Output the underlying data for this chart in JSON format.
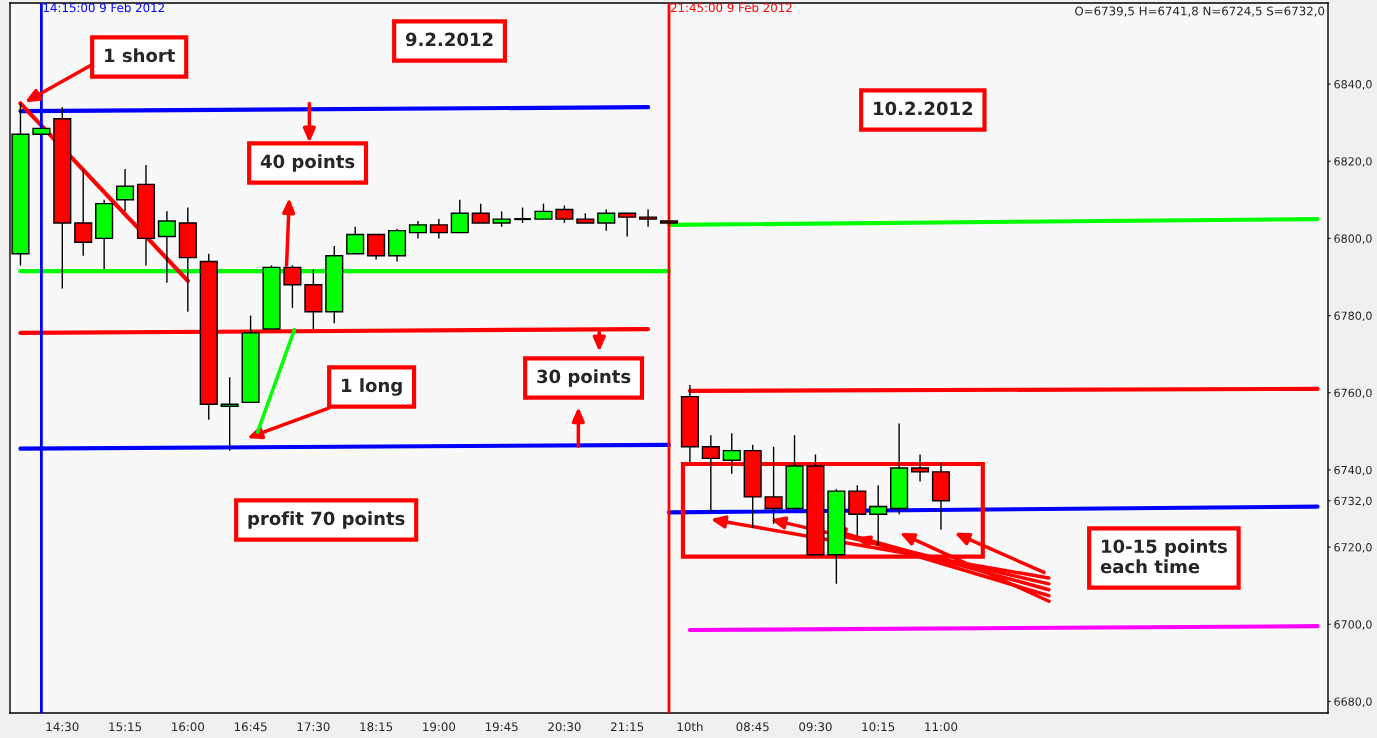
{
  "chart_data": {
    "type": "candlestick",
    "categories": [
      null,
      null,
      "14:30",
      null,
      null,
      "15:15",
      null,
      null,
      "16:00",
      null,
      null,
      "16:45",
      null,
      null,
      "17:30",
      null,
      null,
      "18:15",
      null,
      null,
      "19:00",
      null,
      null,
      "19:45",
      null,
      null,
      "20:30",
      null,
      null,
      "21:15",
      null,
      null,
      "10th",
      null,
      null,
      "08:45",
      null,
      null,
      "09:30",
      null,
      null,
      "10:15",
      null,
      null,
      "11:00",
      null,
      null,
      null,
      null,
      null,
      null,
      null,
      null,
      null,
      null,
      null,
      null,
      null,
      null,
      null,
      null,
      null,
      null
    ],
    "ohlc": [
      [
        6796,
        6835,
        6793,
        6827
      ],
      [
        6827,
        6828.5,
        6827,
        6828.5
      ],
      [
        6831,
        6834,
        6787,
        6804
      ],
      [
        6804,
        6818,
        6795.5,
        6799
      ],
      [
        6800,
        6810,
        6792,
        6809
      ],
      [
        6810,
        6818,
        6807,
        6813.5
      ],
      [
        6814,
        6819,
        6793,
        6800
      ],
      [
        6800.5,
        6807,
        6788.5,
        6804.5
      ],
      [
        6804,
        6808,
        6781,
        6795
      ],
      [
        6794,
        6796,
        6753,
        6757
      ],
      [
        6756.5,
        6764,
        6745,
        6757
      ],
      [
        6757.5,
        6780,
        6757.5,
        6775.5
      ],
      [
        6776.5,
        6793,
        6776.5,
        6792.5
      ],
      [
        6792.5,
        6793,
        6782,
        6788
      ],
      [
        6788,
        6792,
        6776.5,
        6781
      ],
      [
        6781,
        6798,
        6778,
        6795.5
      ],
      [
        6796,
        6803,
        6796,
        6801
      ],
      [
        6801,
        6801,
        6794.5,
        6795.5
      ],
      [
        6795.5,
        6802.5,
        6794,
        6802
      ],
      [
        6801.5,
        6804.5,
        6800,
        6803.5
      ],
      [
        6803.5,
        6805,
        6800,
        6801.5
      ],
      [
        6801.5,
        6810,
        6801.5,
        6806.5
      ],
      [
        6806.5,
        6809,
        6804,
        6804
      ],
      [
        6804,
        6807,
        6803,
        6805
      ],
      [
        6805,
        6808,
        6804,
        6805
      ],
      [
        6805,
        6809,
        6805,
        6807
      ],
      [
        6807.5,
        6808.5,
        6804,
        6805
      ],
      [
        6805,
        6806.5,
        6804,
        6804
      ],
      [
        6804,
        6807.5,
        6802,
        6806.5
      ],
      [
        6806.5,
        6806.5,
        6800.5,
        6805.5
      ],
      [
        6805.5,
        6807.5,
        6803,
        6805
      ],
      [
        6804.5,
        6804.5,
        6804,
        6804
      ],
      [
        6759,
        6762,
        6742,
        6746
      ],
      [
        6746,
        6749,
        6729,
        6743
      ],
      [
        6742.5,
        6749.5,
        6739,
        6745
      ],
      [
        6745,
        6746.5,
        6725,
        6733
      ],
      [
        6733,
        6746,
        6726,
        6730
      ],
      [
        6730,
        6749,
        6730,
        6741
      ],
      [
        6741,
        6744,
        6718,
        6718
      ],
      [
        6718,
        6735,
        6710.5,
        6734.5
      ],
      [
        6734.5,
        6736,
        6723,
        6728.5
      ],
      [
        6728.5,
        6736,
        6720.5,
        6730.5
      ],
      [
        6730,
        6752,
        6728.5,
        6740.5
      ],
      [
        6740.5,
        6744,
        6737,
        6739.5
      ],
      [
        6739.5,
        6741.8,
        6724.5,
        6732
      ],
      null,
      null,
      null,
      null,
      null,
      null,
      null,
      null,
      null,
      null,
      null,
      null,
      null,
      null,
      null,
      null,
      null,
      null
    ],
    "colors": [
      "#00ff00",
      "#00ff00",
      "#ff0000",
      "#ff0000",
      "#00ff00",
      "#00ff00",
      "#ff0000",
      "#00ff00",
      "#ff0000",
      "#ff0000",
      "#00ff00",
      "#00ff00",
      "#00ff00",
      "#ff0000",
      "#ff0000",
      "#00ff00",
      "#00ff00",
      "#ff0000",
      "#00ff00",
      "#00ff00",
      "#ff0000",
      "#00ff00",
      "#ff0000",
      "#00ff00",
      "#000000",
      "#00ff00",
      "#ff0000",
      "#ff0000",
      "#00ff00",
      "#ff0000",
      "#ff0000",
      "#ff0000",
      "#ff0000",
      "#ff0000",
      "#00ff00",
      "#ff0000",
      "#ff0000",
      "#00ff00",
      "#ff0000",
      "#00ff00",
      "#ff0000",
      "#00ff00",
      "#00ff00",
      "#ff0000",
      "#ff0000",
      null,
      null,
      null,
      null,
      null,
      null,
      null,
      null,
      null,
      null,
      null,
      null,
      null,
      null,
      null,
      null,
      null,
      null
    ],
    "series": [
      {
        "type": "line",
        "color": "#0000ff",
        "values": [
          6833,
          null,
          null,
          null,
          null,
          null,
          null,
          null,
          null,
          null,
          null,
          null,
          null,
          null,
          null,
          null,
          null,
          null,
          null,
          null,
          null,
          null,
          null,
          null,
          null,
          null,
          null,
          null,
          null,
          null,
          6834,
          null,
          null,
          null,
          null,
          null,
          null,
          null,
          null,
          null,
          null,
          null,
          null,
          null,
          null,
          null,
          null,
          null,
          null,
          null,
          null,
          null,
          null,
          null,
          null,
          null,
          null,
          null,
          null,
          null,
          null,
          null,
          null
        ]
      },
      {
        "type": "line",
        "color": "#00ff00",
        "values": [
          6791.5,
          null,
          null,
          null,
          null,
          null,
          null,
          null,
          null,
          null,
          null,
          null,
          null,
          null,
          null,
          null,
          null,
          null,
          null,
          null,
          null,
          null,
          null,
          null,
          null,
          null,
          null,
          null,
          null,
          null,
          null,
          6791.5,
          null,
          null,
          null,
          null,
          null,
          null,
          null,
          null,
          null,
          null,
          null,
          null,
          null,
          null,
          null,
          null,
          null,
          null,
          null,
          null,
          null,
          null,
          null,
          null,
          null,
          null,
          null,
          null,
          null,
          null,
          null
        ]
      },
      {
        "type": "line",
        "color": "#ff0000",
        "values": [
          6775.5,
          null,
          null,
          null,
          null,
          null,
          null,
          null,
          null,
          null,
          null,
          null,
          null,
          null,
          null,
          null,
          null,
          null,
          null,
          null,
          null,
          null,
          null,
          null,
          null,
          null,
          null,
          null,
          null,
          null,
          6776.5,
          null,
          null,
          null,
          null,
          null,
          null,
          null,
          null,
          null,
          null,
          null,
          null,
          null,
          null,
          null,
          null,
          null,
          null,
          null,
          null,
          null,
          null,
          null,
          null,
          null,
          null,
          null,
          null,
          null,
          null,
          null,
          null
        ]
      },
      {
        "type": "line",
        "color": "#0000ff",
        "values": [
          6745.5,
          null,
          null,
          null,
          null,
          null,
          null,
          null,
          null,
          null,
          null,
          null,
          null,
          null,
          null,
          null,
          null,
          null,
          null,
          null,
          null,
          null,
          null,
          null,
          null,
          null,
          null,
          null,
          null,
          null,
          null,
          6746.5,
          null,
          null,
          null,
          null,
          null,
          null,
          null,
          null,
          null,
          null,
          null,
          null,
          null,
          null,
          null,
          null,
          null,
          null,
          null,
          null,
          null,
          null,
          null,
          null,
          null,
          null,
          null,
          null,
          null,
          null,
          null
        ]
      },
      {
        "type": "line",
        "color": "#00ff00",
        "values": [
          null,
          null,
          null,
          null,
          null,
          null,
          null,
          null,
          null,
          null,
          null,
          null,
          null,
          null,
          null,
          null,
          null,
          null,
          null,
          null,
          null,
          null,
          null,
          null,
          null,
          null,
          null,
          null,
          null,
          null,
          null,
          6803.5,
          null,
          null,
          null,
          null,
          null,
          null,
          null,
          null,
          null,
          null,
          null,
          null,
          null,
          null,
          null,
          null,
          null,
          null,
          null,
          null,
          null,
          null,
          null,
          null,
          null,
          null,
          null,
          null,
          null,
          null,
          6805
        ]
      },
      {
        "type": "line",
        "color": "#ff0000",
        "values": [
          null,
          null,
          null,
          null,
          null,
          null,
          null,
          null,
          null,
          null,
          null,
          null,
          null,
          null,
          null,
          null,
          null,
          null,
          null,
          null,
          null,
          null,
          null,
          null,
          null,
          null,
          null,
          null,
          null,
          null,
          null,
          null,
          6760.5,
          null,
          null,
          null,
          null,
          null,
          null,
          null,
          null,
          null,
          null,
          null,
          null,
          null,
          null,
          null,
          null,
          null,
          null,
          null,
          null,
          null,
          null,
          null,
          null,
          null,
          null,
          null,
          null,
          null,
          6761
        ]
      },
      {
        "type": "line",
        "color": "#0000ff",
        "values": [
          null,
          null,
          null,
          null,
          null,
          null,
          null,
          null,
          null,
          null,
          null,
          null,
          null,
          null,
          null,
          null,
          null,
          null,
          null,
          null,
          null,
          null,
          null,
          null,
          null,
          null,
          null,
          null,
          null,
          null,
          null,
          6729,
          null,
          null,
          null,
          null,
          null,
          null,
          null,
          null,
          null,
          null,
          null,
          null,
          null,
          null,
          null,
          null,
          null,
          null,
          null,
          null,
          null,
          null,
          null,
          null,
          null,
          null,
          null,
          null,
          null,
          null,
          6730.5
        ]
      },
      {
        "type": "line",
        "color": "#ff0000",
        "values": [
          6835,
          null,
          null,
          null,
          null,
          null,
          null,
          null,
          6789,
          null,
          null,
          null,
          null,
          null,
          null,
          null,
          null,
          null,
          null,
          null,
          null,
          null,
          null,
          null,
          null,
          null,
          null,
          null,
          null,
          null,
          null,
          null,
          null,
          null,
          null,
          null,
          null,
          null,
          null,
          null,
          null,
          null,
          null,
          null,
          null,
          null,
          null,
          null,
          null,
          null,
          null,
          null,
          null,
          null,
          null,
          null,
          null,
          null,
          null,
          null,
          null,
          null,
          null
        ]
      },
      {
        "type": "line",
        "color": "#ff00ff",
        "values": [
          null,
          null,
          null,
          null,
          null,
          null,
          null,
          null,
          null,
          null,
          null,
          null,
          null,
          null,
          null,
          null,
          null,
          null,
          null,
          null,
          null,
          null,
          null,
          null,
          null,
          null,
          null,
          null,
          null,
          null,
          null,
          null,
          6698.5,
          null,
          null,
          null,
          null,
          null,
          null,
          null,
          null,
          null,
          null,
          null,
          null,
          null,
          null,
          null,
          null,
          null,
          null,
          null,
          null,
          null,
          null,
          null,
          null,
          null,
          null,
          null,
          null,
          null,
          6699.5
        ]
      }
    ],
    "marker": "none",
    "line_style": "solid",
    "ylim": [
      6677,
      6861
    ],
    "yticks": [
      {
        "value": 6680,
        "label": "6680,0"
      },
      {
        "value": 6700,
        "label": "6700,0"
      },
      {
        "value": 6720,
        "label": "6720,0"
      },
      {
        "value": 6732,
        "label": "6732,0"
      },
      {
        "value": 6740,
        "label": "6740,0"
      },
      {
        "value": 6760,
        "label": "6760,0"
      },
      {
        "value": 6780,
        "label": "6780,0"
      },
      {
        "value": 6800,
        "label": "6800,0"
      },
      {
        "value": 6820,
        "label": "6820,0"
      },
      {
        "value": 6840,
        "label": "6840,0"
      }
    ],
    "annotations": [
      "14:15:00 9 Feb 2012",
      "21:45:00 9 Feb 2012",
      "1 short",
      "9.2.2012",
      "40 points",
      "10.2.2012",
      "30 points",
      "1 long",
      "profit 70 points",
      "10-15 points\neach time",
      "O=6739,5 H=6741,8 N=6724,5 S=6732,0"
    ],
    "grid": false,
    "legend": false
  }
}
